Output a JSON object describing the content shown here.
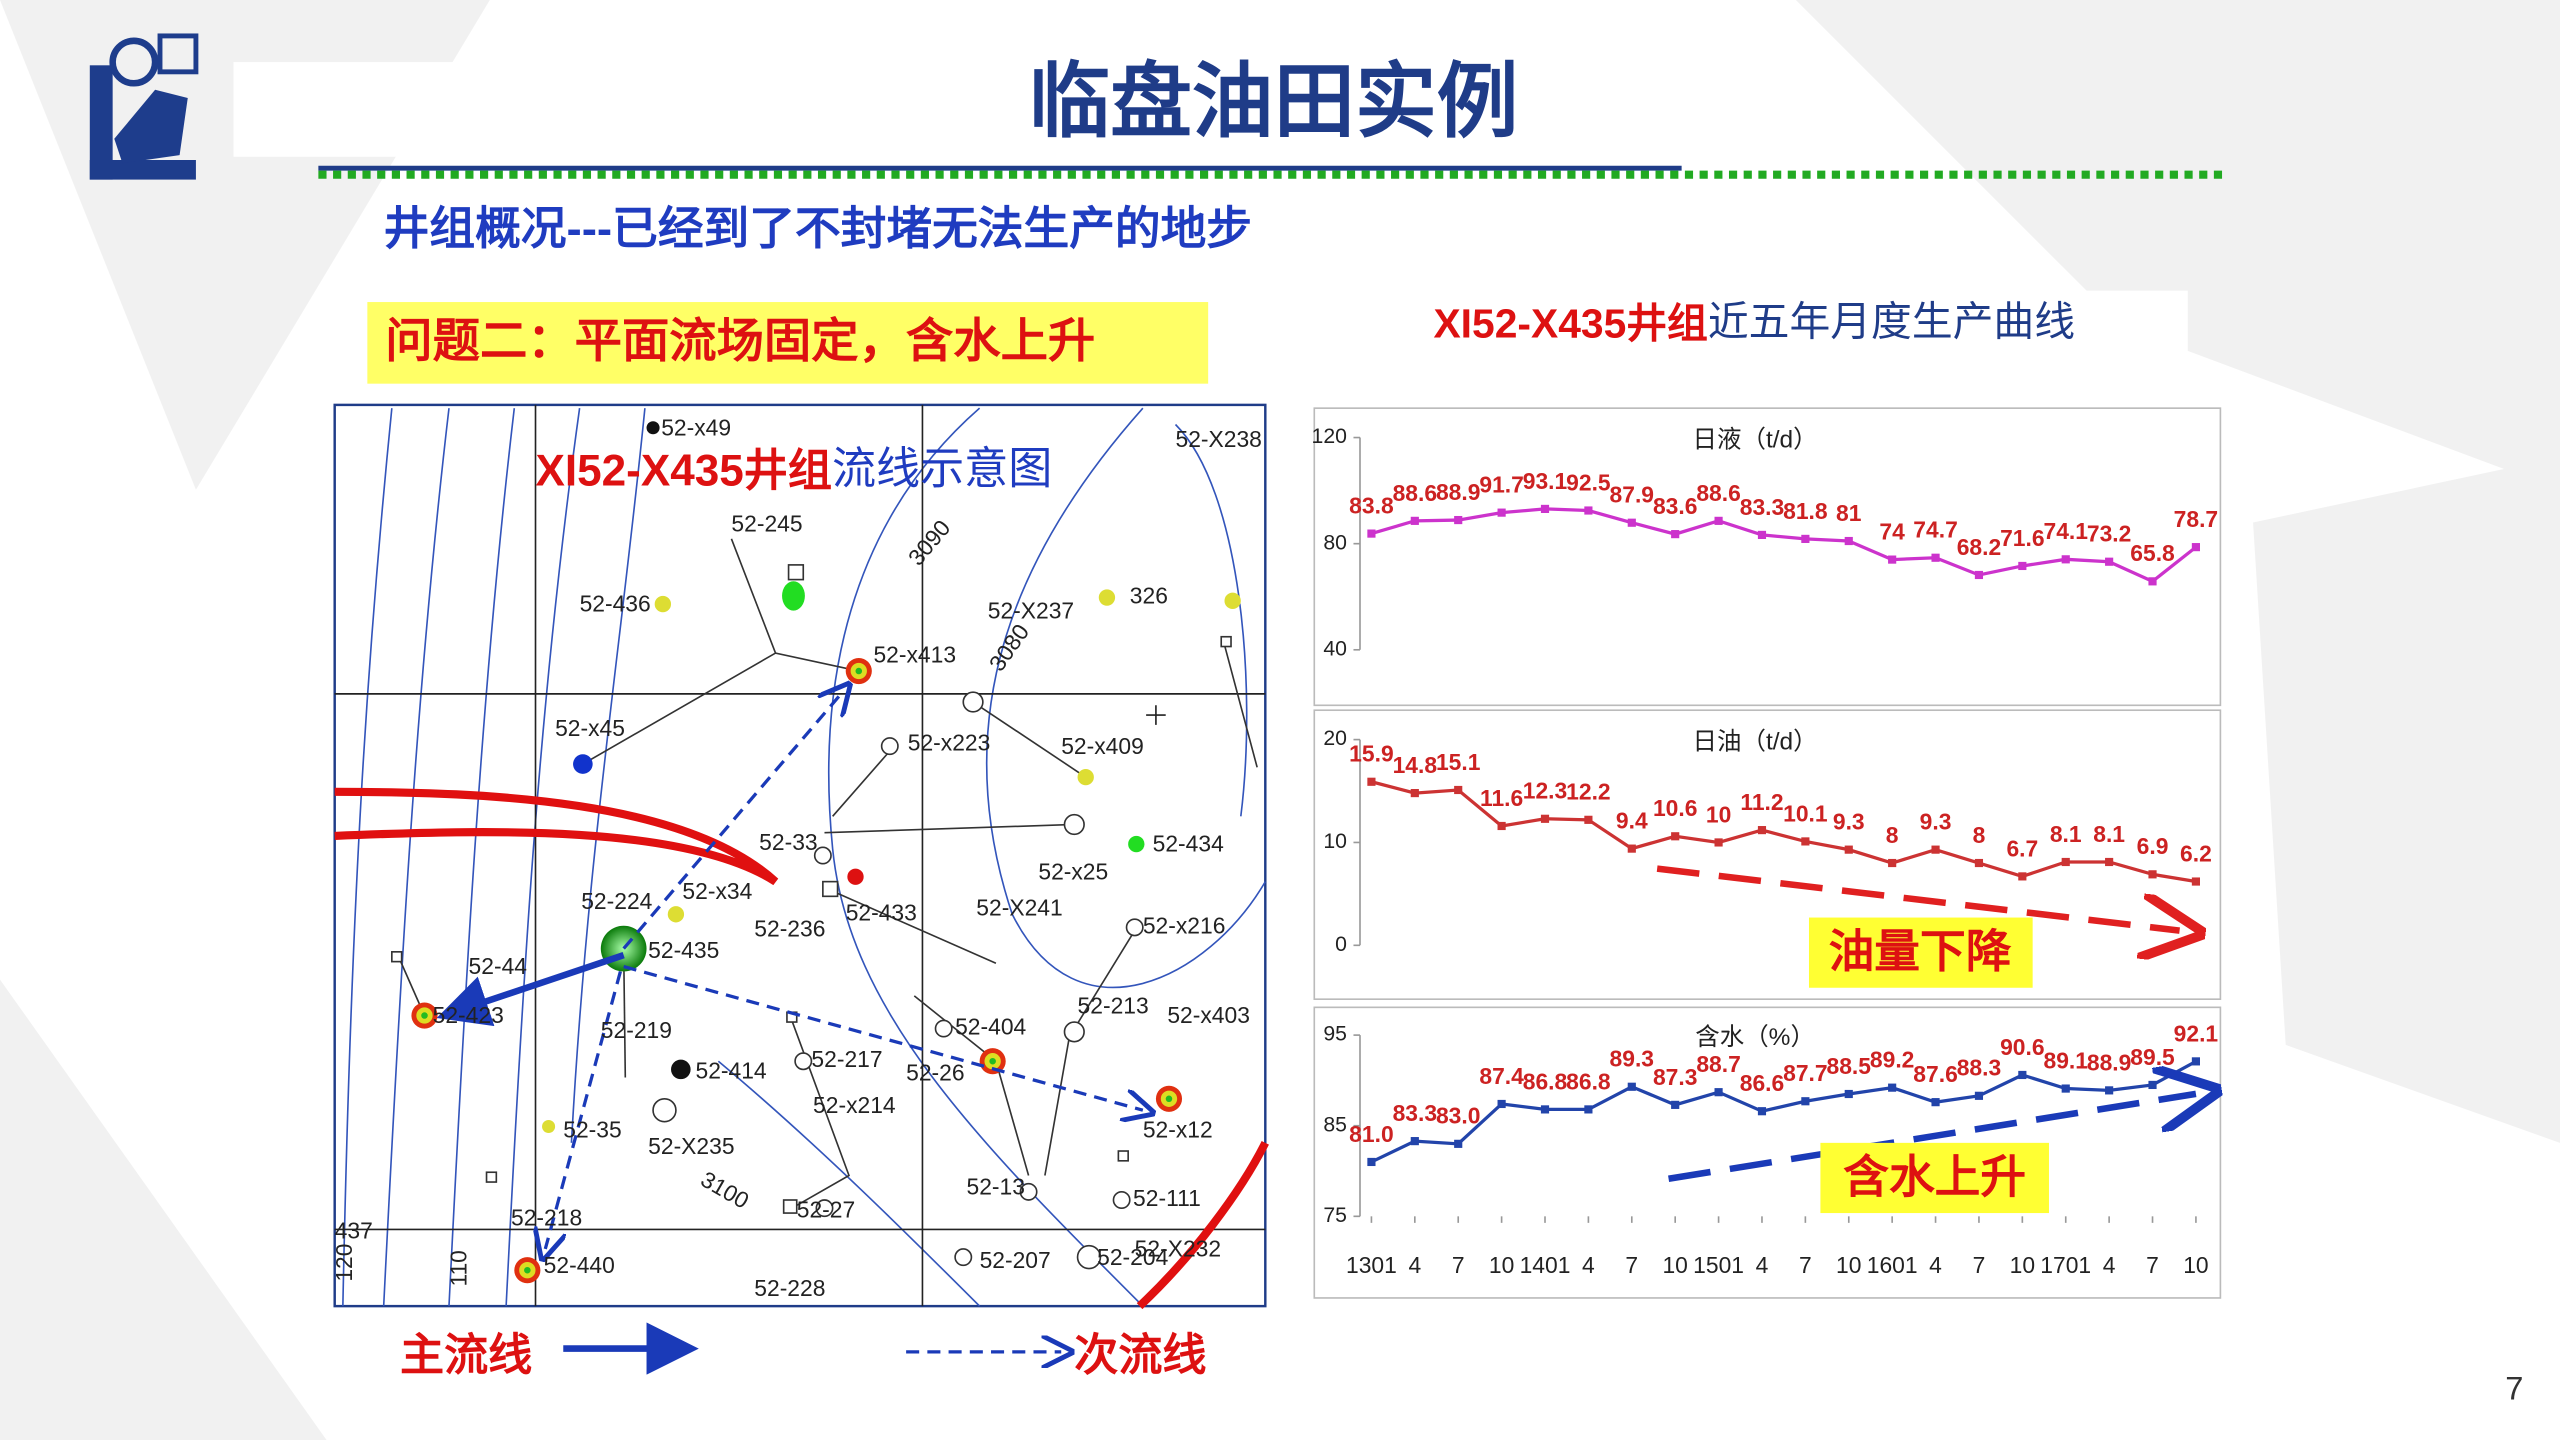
{
  "header": {
    "title": "临盘油田实例",
    "subtitle": "井组概况---已经到了不封堵无法生产的地步",
    "problem": "问题二：平面流场固定，含水上升",
    "page": "7"
  },
  "charts_title": {
    "a": "XI52-X435井组",
    "b": "近五年月度生产曲线"
  },
  "map": {
    "title_a": "XI52-X435井组",
    "title_b": "流线示意图",
    "labels": [
      "52-x49",
      "52-245",
      "52-436",
      "52-x45",
      "52-x413",
      "52-X237",
      "326",
      "52-x223",
      "52-x409",
      "52-33",
      "52-434",
      "52-x25",
      "52-224",
      "52-x34",
      "52-435",
      "52-236",
      "52-433",
      "52-X241",
      "52-x216",
      "52-44",
      "52-423",
      "52-219",
      "52-414",
      "52-217",
      "52-x214",
      "52-26",
      "52-404",
      "52-213",
      "52-x403",
      "52-35",
      "52-X235",
      "52-x12",
      "52-13",
      "52-111",
      "52-27",
      "52-218",
      "52-440",
      "52-207",
      "52-204",
      "52-X232",
      "52-228",
      "52-X238",
      "3090",
      "3080",
      "3100",
      "437",
      "120",
      "110"
    ],
    "legend": {
      "main": "主流线",
      "secondary": "次流线"
    }
  },
  "chart_data": [
    {
      "type": "line",
      "title": "日液（t/d）",
      "ylim": [
        40,
        120
      ],
      "yticks": [
        40,
        80,
        120
      ],
      "label_color": "#cc2222",
      "series": [
        {
          "color": "#cc33cc",
          "values": [
            83.8,
            88.6,
            88.9,
            91.7,
            93.1,
            92.5,
            87.9,
            83.6,
            88.6,
            83.3,
            81.8,
            81,
            74,
            74.7,
            68.2,
            71.6,
            74.1,
            73.2,
            65.8,
            78.7
          ]
        }
      ]
    },
    {
      "type": "line",
      "title": "日油（t/d）",
      "ylim": [
        0,
        20
      ],
      "yticks": [
        0,
        10,
        20
      ],
      "label_color": "#cc2222",
      "annotation": "油量下降",
      "series": [
        {
          "color": "#cc3333",
          "values": [
            15.9,
            14.8,
            15.1,
            11.6,
            12.3,
            12.2,
            9.4,
            10.6,
            10,
            11.2,
            10.1,
            9.3,
            8,
            9.3,
            8,
            6.7,
            8.1,
            8.1,
            6.9,
            6.2
          ]
        }
      ]
    },
    {
      "type": "line",
      "title": "含水（%）",
      "ylim": [
        75,
        95
      ],
      "yticks": [
        75,
        85,
        95
      ],
      "label_color": "#cc2222",
      "annotation": "含水上升",
      "categories": [
        "1301",
        "4",
        "7",
        "10",
        "1401",
        "4",
        "7",
        "10",
        "1501",
        "4",
        "7",
        "10",
        "1601",
        "4",
        "7",
        "10",
        "1701",
        "4",
        "7",
        "10"
      ],
      "series": [
        {
          "color": "#2244aa",
          "values": [
            81,
            83.3,
            83,
            87.4,
            86.8,
            86.8,
            89.3,
            87.3,
            88.7,
            86.6,
            87.7,
            88.5,
            89.2,
            87.6,
            88.3,
            90.6,
            89.1,
            88.9,
            89.5,
            92.1
          ],
          "value_labels": [
            "81.0",
            "83.3",
            "83.0",
            "87.4",
            "86.8",
            "86.8",
            "89.3",
            "87.3",
            "88.7",
            "86.6",
            "87.7",
            "88.5",
            "89.2",
            "87.6",
            "88.3",
            "90.6",
            "89.1",
            "88.9",
            "89.5",
            "92.1"
          ]
        }
      ]
    }
  ]
}
